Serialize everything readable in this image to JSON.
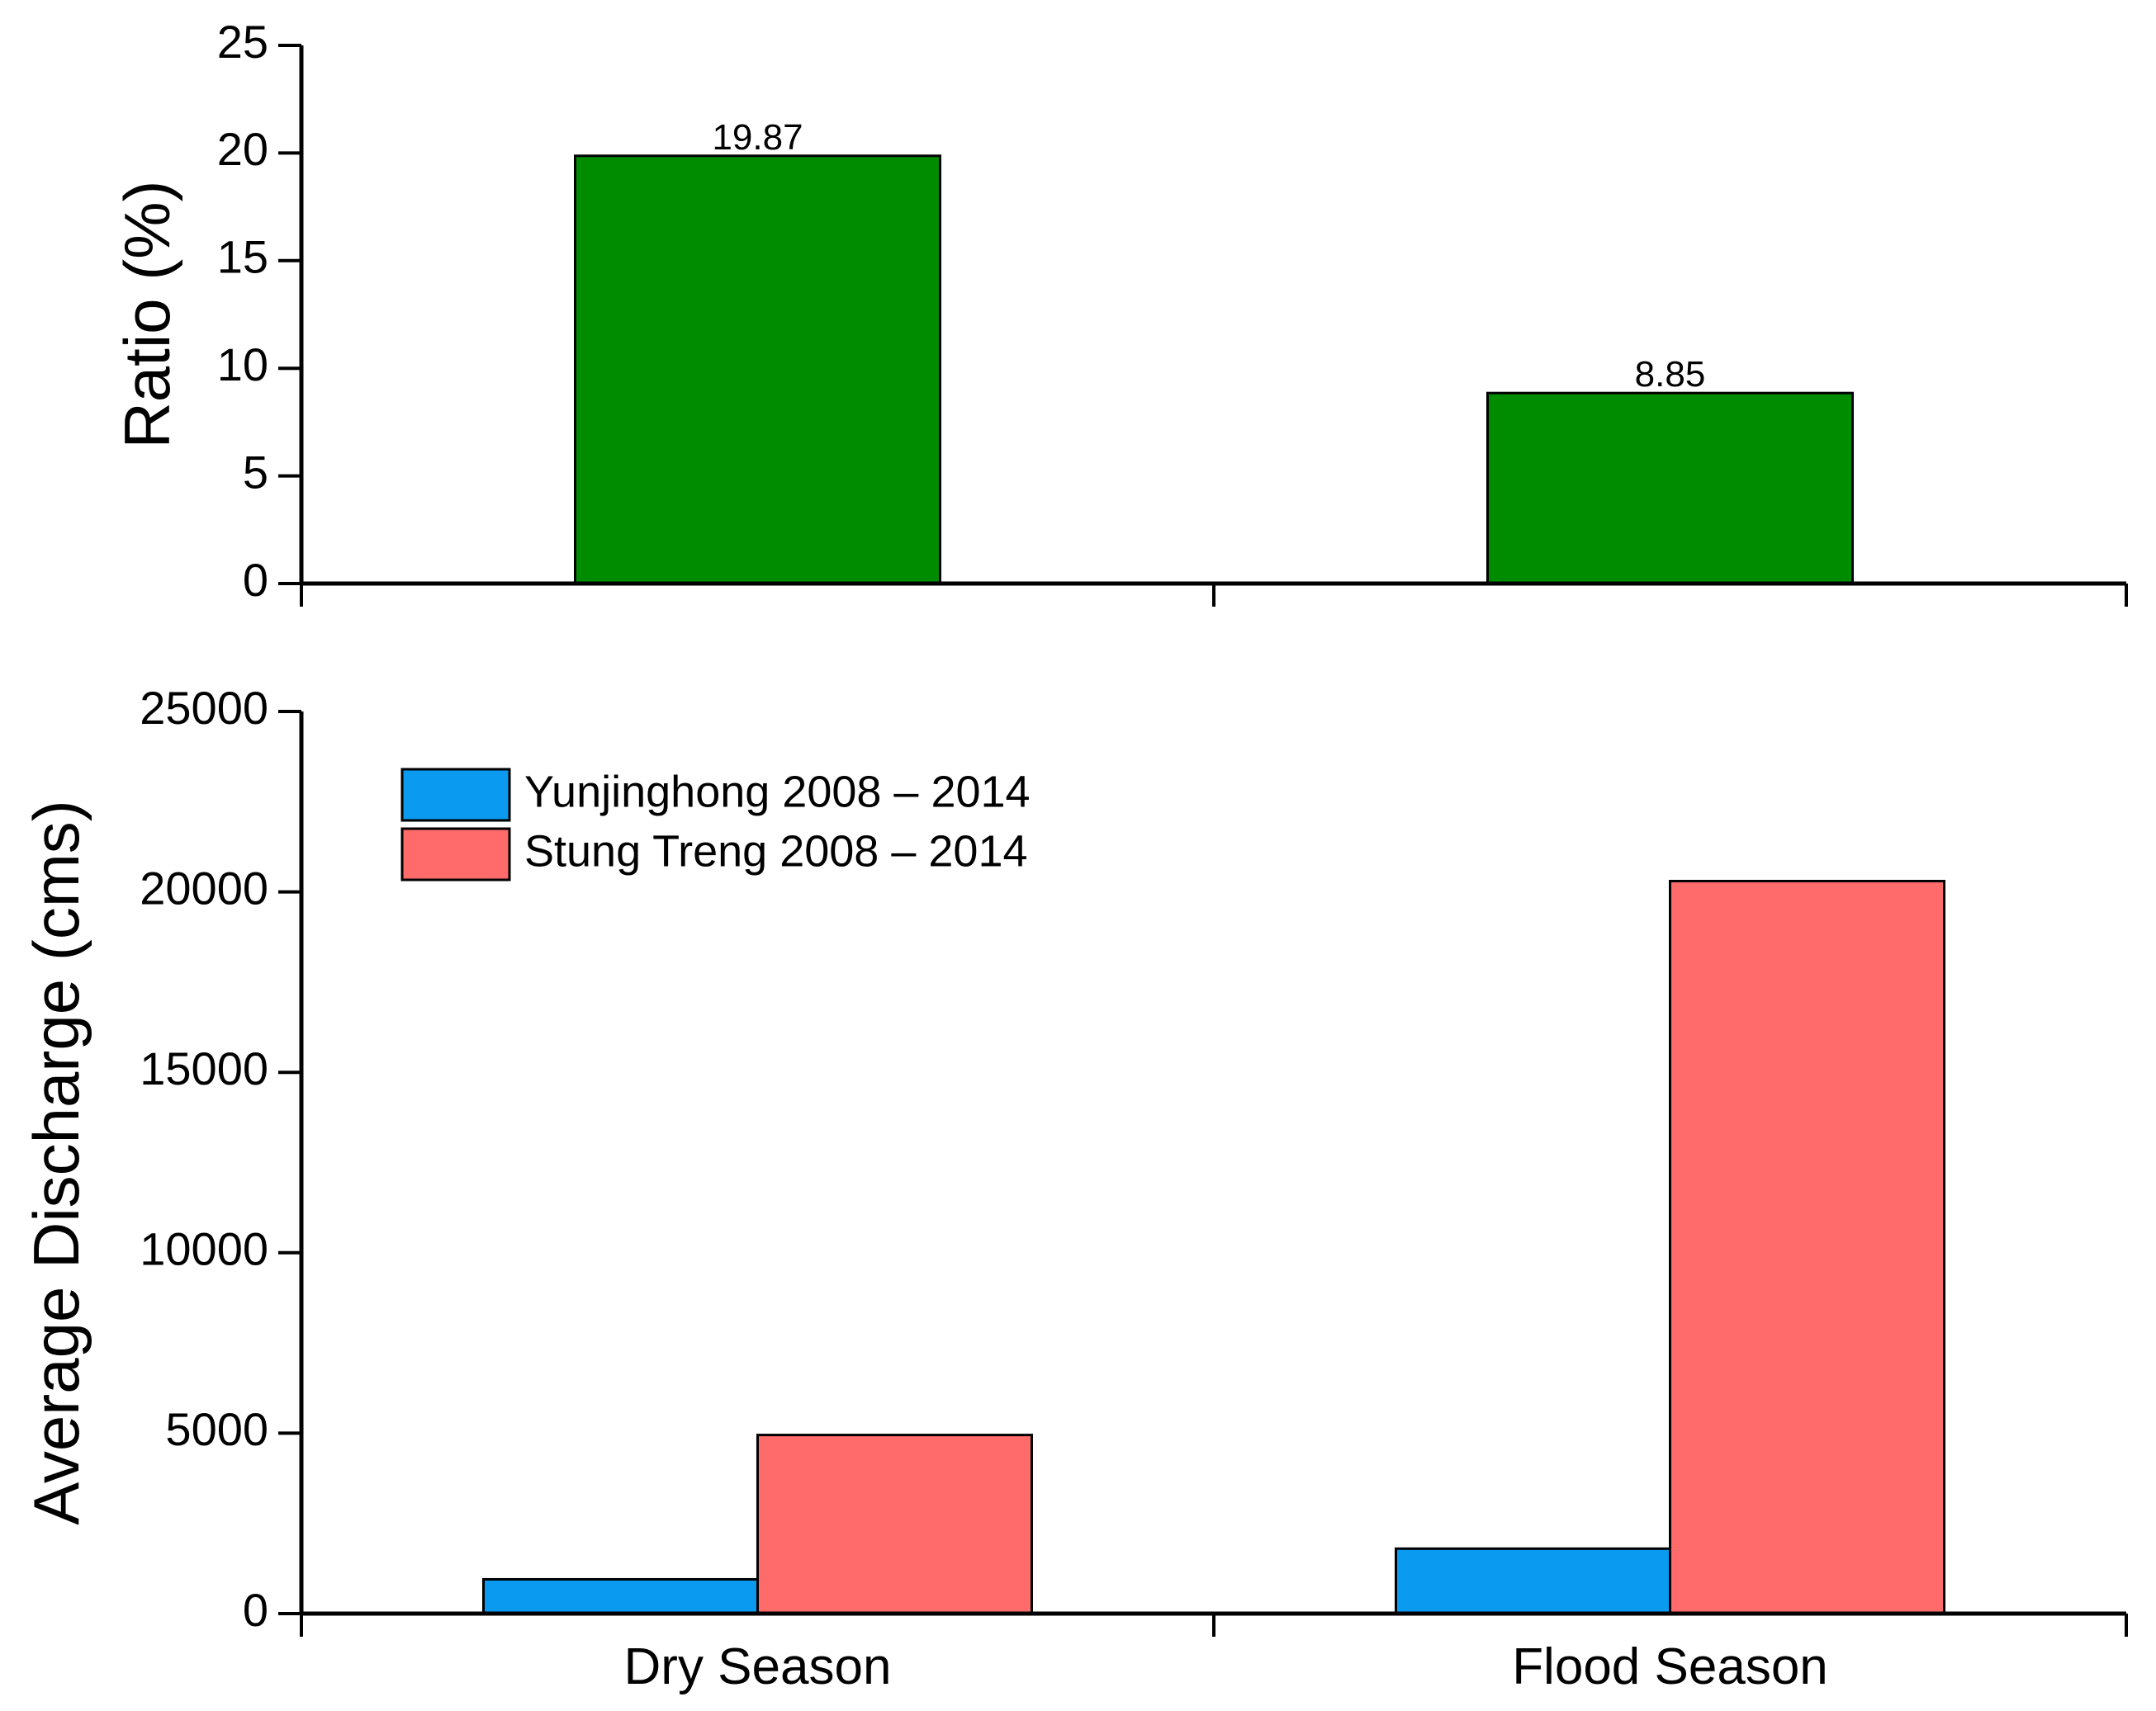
{
  "chart_data": [
    {
      "id": "ratio",
      "type": "bar",
      "categories": [
        "Dry Season",
        "Flood Season"
      ],
      "values": [
        19.87,
        8.85
      ],
      "data_labels": [
        "19.87",
        "8.85"
      ],
      "ylabel": "Ratio (%)",
      "xlabel": "",
      "ylim": [
        0,
        25
      ],
      "yticks": [
        0,
        5,
        10,
        15,
        20,
        25
      ],
      "ytick_labels": [
        "0",
        "5",
        "10",
        "15",
        "20",
        "25"
      ],
      "show_category_labels": false,
      "color": "#008c00",
      "grid": false
    },
    {
      "id": "discharge",
      "type": "bar",
      "categories": [
        "Dry Season",
        "Flood Season"
      ],
      "series": [
        {
          "name": "Yunjinghong 2008 – 2014",
          "values": [
            950,
            1800
          ],
          "color": "#0a9bf0"
        },
        {
          "name": "Stung Treng 2008 – 2014",
          "values": [
            4950,
            20300
          ],
          "color": "#ff6b6b"
        }
      ],
      "ylabel": "Average Discharge (cms)",
      "xlabel": "",
      "ylim": [
        0,
        25000
      ],
      "yticks": [
        0,
        5000,
        10000,
        15000,
        20000,
        25000
      ],
      "ytick_labels": [
        "0",
        "5000",
        "10000",
        "15000",
        "20000",
        "25000"
      ],
      "show_category_labels": true,
      "legend_position": "top-left",
      "grid": false
    }
  ]
}
